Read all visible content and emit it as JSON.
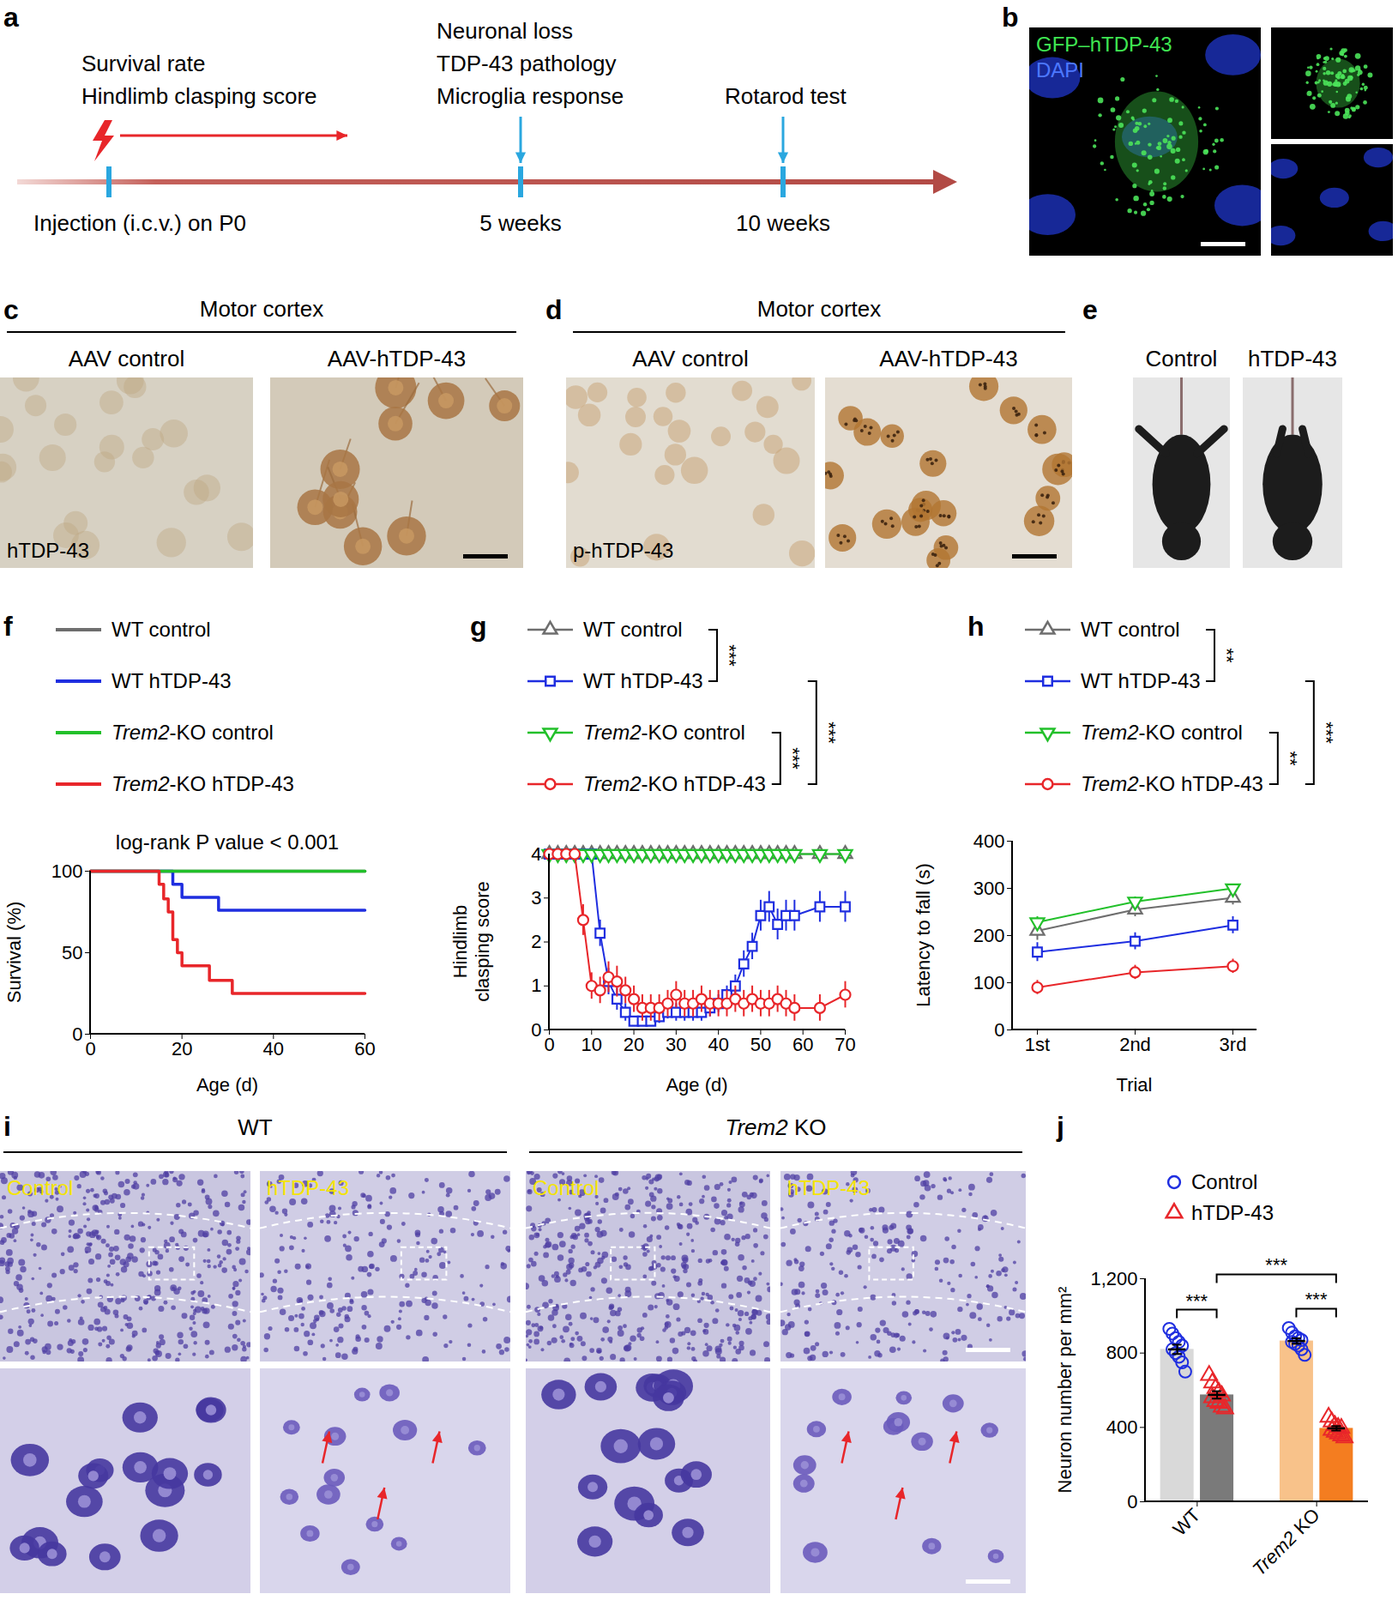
{
  "figure": {
    "a": {
      "letter": "a",
      "events": [
        {
          "label": "Injection (i.c.v.) on P0",
          "lines": [
            "Survival rate",
            "Hindlimb clasping score"
          ]
        },
        {
          "label": "5 weeks",
          "lines": [
            "Neuronal loss",
            "TDP-43 pathology",
            "Microglia response"
          ]
        },
        {
          "label": "10 weeks",
          "lines": [
            "Rotarod test"
          ]
        }
      ]
    },
    "b": {
      "letter": "b",
      "labels": [
        "GFP–hTDP-43",
        "DAPI"
      ]
    },
    "c": {
      "letter": "c",
      "title": "Motor cortex",
      "columns": [
        "AAV control",
        "AAV-hTDP-43"
      ],
      "stain": "hTDP-43"
    },
    "d": {
      "letter": "d",
      "title": "Motor cortex",
      "columns": [
        "AAV control",
        "AAV-hTDP-43"
      ],
      "stain": "p-hTDP-43"
    },
    "e": {
      "letter": "e",
      "columns": [
        "Control",
        "hTDP-43"
      ]
    },
    "i": {
      "letter": "i",
      "groups": [
        {
          "title": "WT",
          "columns": [
            "Control",
            "hTDP-43"
          ]
        },
        {
          "title": "Trem2 KO",
          "columns": [
            "Control",
            "hTDP-43"
          ]
        }
      ]
    }
  },
  "chart_data": [
    {
      "panel": "f",
      "type": "line",
      "line_style": "step",
      "annotation": "log-rank P value < 0.001",
      "x_label": "Age (d)",
      "y_label": "Survival (%)",
      "xlim": [
        0,
        60
      ],
      "xticks": [
        0,
        20,
        40,
        60
      ],
      "ylim": [
        0,
        100
      ],
      "yticks": [
        0,
        50,
        100
      ],
      "legend": "top",
      "series": [
        {
          "name": "WT control",
          "color": "#6e6e6e",
          "x": [
            0,
            60
          ],
          "values": [
            100,
            100
          ]
        },
        {
          "name": "WT hTDP-43",
          "color": "#1f2ee0",
          "x": [
            0,
            18,
            20,
            28,
            60
          ],
          "values": [
            100,
            92,
            84,
            76,
            76
          ]
        },
        {
          "name": "Trem2-KO control",
          "color": "#22c02a",
          "x": [
            0,
            60
          ],
          "values": [
            100,
            100
          ]
        },
        {
          "name": "Trem2-KO hTDP-43",
          "color": "#e8262a",
          "x": [
            0,
            15,
            16,
            17,
            18,
            19,
            20,
            26,
            31,
            60
          ],
          "values": [
            100,
            92,
            83,
            75,
            58,
            50,
            42,
            33,
            25,
            25
          ]
        }
      ]
    },
    {
      "panel": "g",
      "type": "line",
      "x_label": "Age (d)",
      "y_label": "Hindlimb clasping score",
      "xlim": [
        0,
        70
      ],
      "xticks": [
        0,
        10,
        20,
        30,
        40,
        50,
        60,
        70
      ],
      "ylim": [
        0,
        4
      ],
      "yticks": [
        0,
        1,
        2,
        3,
        4
      ],
      "legend": "top",
      "x": [
        0,
        2,
        4,
        6,
        8,
        10,
        12,
        14,
        16,
        18,
        20,
        22,
        24,
        26,
        28,
        30,
        32,
        34,
        36,
        38,
        40,
        42,
        44,
        46,
        48,
        50,
        52,
        54,
        56,
        58,
        64,
        70
      ],
      "series": [
        {
          "name": "WT control",
          "color": "#6e6e6e",
          "marker": "triangle",
          "values": [
            4,
            4,
            4,
            4,
            4,
            4,
            4,
            4,
            4,
            4,
            4,
            4,
            4,
            4,
            4,
            4,
            4,
            4,
            4,
            4,
            4,
            4,
            4,
            4,
            4,
            4,
            4,
            4,
            4,
            4,
            4,
            4
          ]
        },
        {
          "name": "WT hTDP-43",
          "color": "#1f2ee0",
          "marker": "square",
          "values": [
            4,
            4,
            4,
            4,
            4,
            4,
            2.2,
            1.1,
            0.7,
            0.4,
            0.2,
            0.2,
            0.2,
            0.3,
            0.4,
            0.4,
            0.4,
            0.4,
            0.4,
            0.5,
            0.6,
            0.8,
            1.0,
            1.5,
            1.9,
            2.6,
            2.8,
            2.4,
            2.6,
            2.6,
            2.8,
            2.8
          ],
          "errors": [
            0,
            0,
            0,
            0,
            0,
            0,
            0.3,
            0.3,
            0.25,
            0.2,
            0.1,
            0.1,
            0.1,
            0.15,
            0.15,
            0.2,
            0.2,
            0.2,
            0.2,
            0.2,
            0.2,
            0.2,
            0.25,
            0.3,
            0.3,
            0.35,
            0.35,
            0.35,
            0.35,
            0.35,
            0.35,
            0.35
          ]
        },
        {
          "name": "Trem2-KO control",
          "color": "#22c02a",
          "marker": "triangle-down",
          "values": [
            4,
            4,
            4,
            4,
            4,
            4,
            4,
            4,
            4,
            4,
            4,
            4,
            4,
            4,
            4,
            4,
            4,
            4,
            4,
            4,
            4,
            4,
            4,
            4,
            4,
            4,
            4,
            4,
            4,
            4,
            4,
            4
          ]
        },
        {
          "name": "Trem2-KO hTDP-43",
          "color": "#e8262a",
          "marker": "circle",
          "values": [
            4,
            4,
            4,
            4,
            2.5,
            1.0,
            0.9,
            1.2,
            1.1,
            0.9,
            0.7,
            0.5,
            0.5,
            0.5,
            0.6,
            0.8,
            0.6,
            0.6,
            0.7,
            0.6,
            0.6,
            0.6,
            0.7,
            0.6,
            0.7,
            0.6,
            0.6,
            0.7,
            0.6,
            0.5,
            0.5,
            0.8
          ],
          "errors": [
            0,
            0,
            0,
            0,
            0.35,
            0.3,
            0.3,
            0.35,
            0.35,
            0.3,
            0.3,
            0.3,
            0.3,
            0.3,
            0.3,
            0.3,
            0.3,
            0.3,
            0.3,
            0.3,
            0.3,
            0.3,
            0.3,
            0.3,
            0.3,
            0.3,
            0.3,
            0.3,
            0.3,
            0.3,
            0.3,
            0.3
          ]
        }
      ],
      "comparisons": [
        {
          "between": [
            "WT control",
            "WT hTDP-43"
          ],
          "label": "***"
        },
        {
          "between": [
            "Trem2-KO control",
            "Trem2-KO hTDP-43"
          ],
          "label": "***"
        },
        {
          "between": [
            "WT hTDP-43",
            "Trem2-KO hTDP-43"
          ],
          "label": "***"
        }
      ]
    },
    {
      "panel": "h",
      "type": "line",
      "x_label": "Trial",
      "y_label": "Latency to fall (s)",
      "categories": [
        "1st",
        "2nd",
        "3rd"
      ],
      "ylim": [
        0,
        400
      ],
      "yticks": [
        0,
        100,
        200,
        300,
        400
      ],
      "legend": "top",
      "series": [
        {
          "name": "WT control",
          "color": "#6e6e6e",
          "marker": "triangle",
          "values": [
            210,
            255,
            280
          ],
          "errors": [
            20,
            15,
            15
          ]
        },
        {
          "name": "WT hTDP-43",
          "color": "#1f2ee0",
          "marker": "square",
          "values": [
            165,
            188,
            222
          ],
          "errors": [
            20,
            18,
            18
          ]
        },
        {
          "name": "Trem2-KO control",
          "color": "#22c02a",
          "marker": "triangle-down",
          "values": [
            228,
            272,
            300
          ],
          "errors": [
            12,
            10,
            8
          ]
        },
        {
          "name": "Trem2-KO hTDP-43",
          "color": "#e8262a",
          "marker": "circle",
          "values": [
            90,
            122,
            135
          ],
          "errors": [
            15,
            15,
            15
          ]
        }
      ],
      "comparisons": [
        {
          "between": [
            "WT control",
            "WT hTDP-43"
          ],
          "label": "**"
        },
        {
          "between": [
            "Trem2-KO control",
            "Trem2-KO hTDP-43"
          ],
          "label": "**"
        },
        {
          "between": [
            "WT hTDP-43",
            "Trem2-KO hTDP-43"
          ],
          "label": "***"
        }
      ]
    },
    {
      "panel": "j",
      "type": "bar",
      "y_label": "Neuron number per mm²",
      "categories": [
        "WT",
        "Trem2 KO"
      ],
      "ylim": [
        0,
        1200
      ],
      "yticks": [
        0,
        400,
        800,
        {
          "value": 1200,
          "label": "1,200"
        }
      ],
      "legend": "top",
      "series": [
        {
          "name": "Control",
          "color": "#1f2ee0",
          "marker": "circle",
          "colors": [
            "#d9d9d9",
            "#f8c28a"
          ],
          "values": [
            820,
            865
          ],
          "errors": [
            25,
            15
          ],
          "points": [
            [
              930,
              905,
              880,
              860,
              840,
              820,
              800,
              780,
              750,
              700
            ],
            [
              935,
              910,
              890,
              880,
              870,
              860,
              850,
              840,
              820,
              790
            ]
          ]
        },
        {
          "name": "hTDP-43",
          "color": "#e8262a",
          "marker": "triangle",
          "colors": [
            "#7a7a7a",
            "#f47d20"
          ],
          "values": [
            575,
            395
          ],
          "errors": [
            20,
            12
          ],
          "points": [
            [
              680,
              640,
              610,
              590,
              570,
              560,
              540,
              530,
              510,
              500
            ],
            [
              455,
              430,
              410,
              400,
              395,
              385,
              375,
              365,
              355,
              345
            ]
          ]
        }
      ],
      "comparisons": [
        {
          "between": [
            {
              "category": "WT",
              "series": "Control"
            },
            {
              "category": "WT",
              "series": "hTDP-43"
            }
          ],
          "label": "***"
        },
        {
          "between": [
            {
              "category": "Trem2 KO",
              "series": "Control"
            },
            {
              "category": "Trem2 KO",
              "series": "hTDP-43"
            }
          ],
          "label": "***"
        },
        {
          "between": [
            {
              "category": "WT",
              "series": "hTDP-43"
            },
            {
              "category": "Trem2 KO",
              "series": "hTDP-43"
            }
          ],
          "label": "***"
        }
      ]
    }
  ]
}
